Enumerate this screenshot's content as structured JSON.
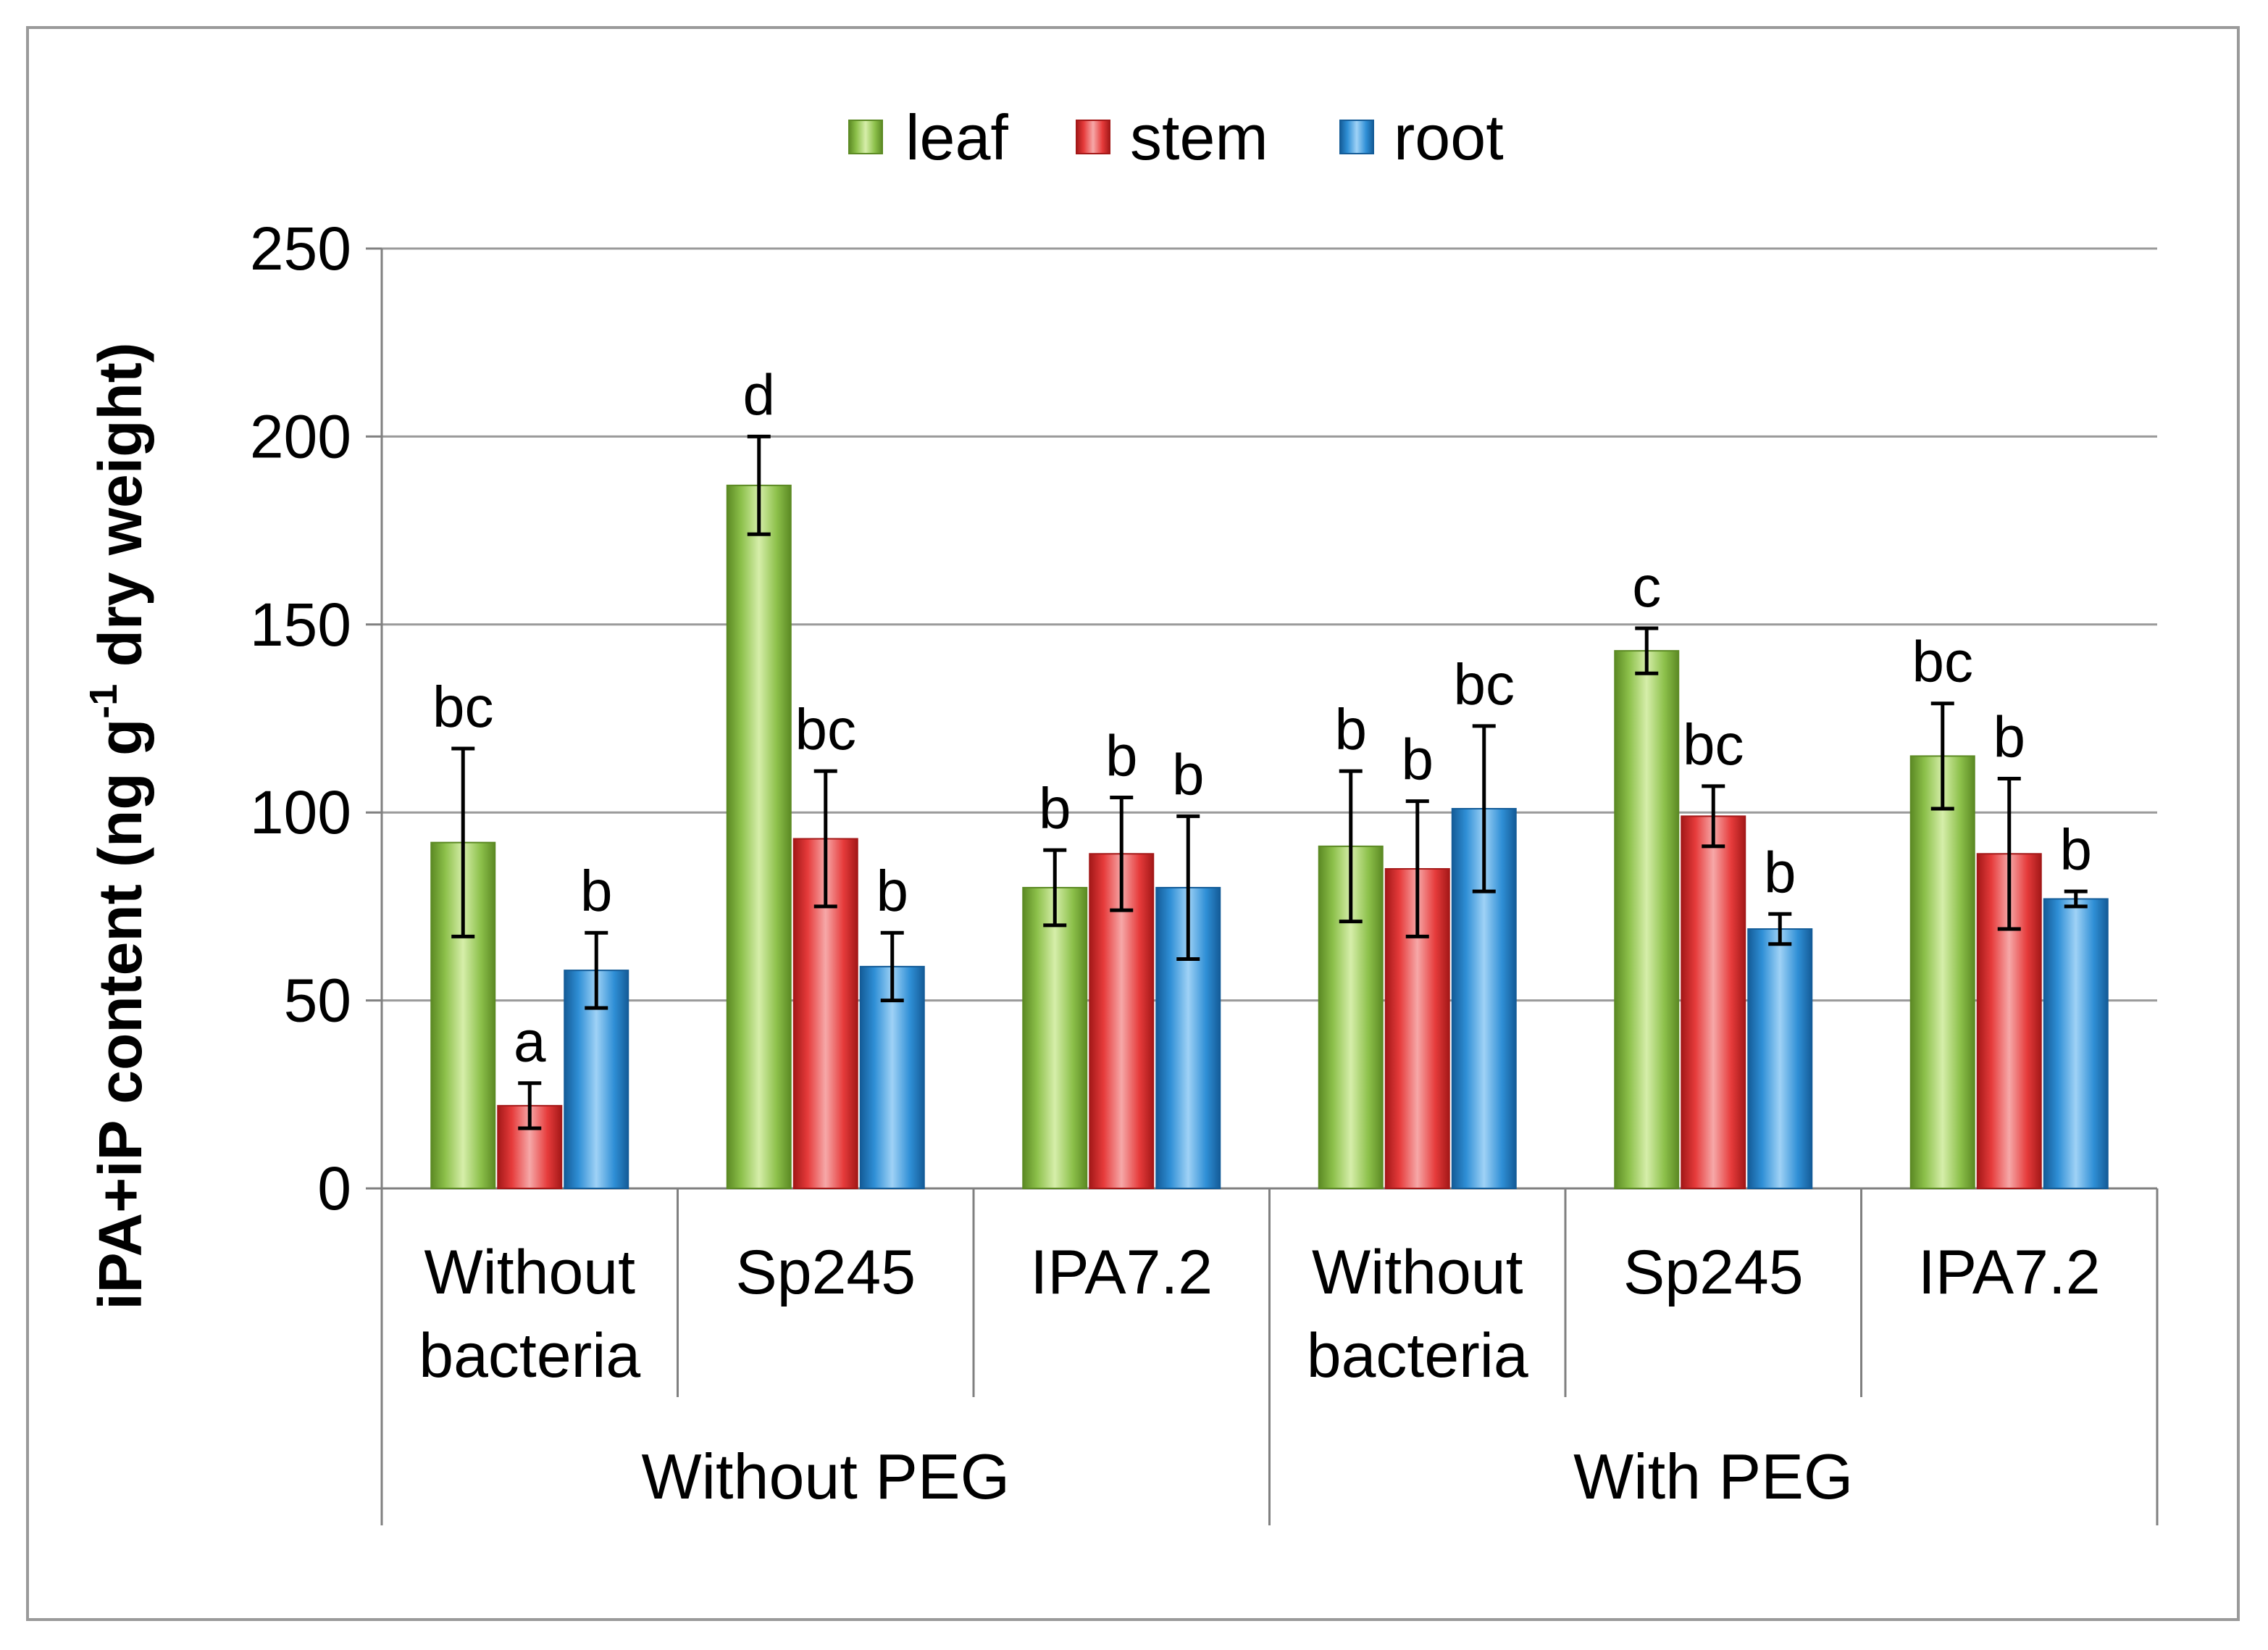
{
  "chart_data": {
    "type": "bar",
    "title": "",
    "ylabel": "iPA+iP content (ng g-1 dry weight)",
    "ylabel_parts": {
      "before": "iPA+iP content (ng g",
      "sup": "-1",
      "after": " dry weight)"
    },
    "ylim": [
      0,
      250
    ],
    "yticks": [
      "0",
      "50",
      "100",
      "150",
      "200",
      "250"
    ],
    "ytick_values": [
      0,
      50,
      100,
      150,
      200,
      250
    ],
    "grid": true,
    "legend_position": "top",
    "groups": [
      {
        "label": "Without PEG",
        "categories": [
          "Without bacteria",
          "Sp245",
          "IPA7.2"
        ]
      },
      {
        "label": "With PEG",
        "categories": [
          "Without bacteria",
          "Sp245",
          "IPA7.2"
        ]
      }
    ],
    "categories": [
      {
        "line1": "Without",
        "line2": "bacteria"
      },
      {
        "line1": "Sp245",
        "line2": ""
      },
      {
        "line1": "IPA7.2",
        "line2": ""
      },
      {
        "line1": "Without",
        "line2": "bacteria"
      },
      {
        "line1": "Sp245",
        "line2": ""
      },
      {
        "line1": "IPA7.2",
        "line2": ""
      }
    ],
    "series": [
      {
        "name": "leaf",
        "color": "#8cc04a",
        "dark": "#5c8a24",
        "light": "#d6eeaa",
        "values": [
          92,
          187,
          80,
          91,
          143,
          115
        ],
        "errors": [
          25,
          13,
          10,
          20,
          6,
          14
        ],
        "labels": [
          "bc",
          "d",
          "b",
          "b",
          "c",
          "bc"
        ]
      },
      {
        "name": "stem",
        "color": "#e63b3b",
        "dark": "#a41818",
        "light": "#f6a8a8",
        "values": [
          22,
          93,
          89,
          85,
          99,
          89
        ],
        "errors": [
          6,
          18,
          15,
          18,
          8,
          20
        ],
        "labels": [
          "a",
          "bc",
          "b",
          "b",
          "bc",
          "b"
        ]
      },
      {
        "name": "root",
        "color": "#2f8fd6",
        "dark": "#145c98",
        "light": "#9fd2f6",
        "values": [
          58,
          59,
          80,
          101,
          69,
          77
        ],
        "errors": [
          10,
          9,
          19,
          22,
          4,
          2
        ],
        "labels": [
          "b",
          "b",
          "b",
          "bc",
          "b",
          "b"
        ]
      }
    ]
  }
}
